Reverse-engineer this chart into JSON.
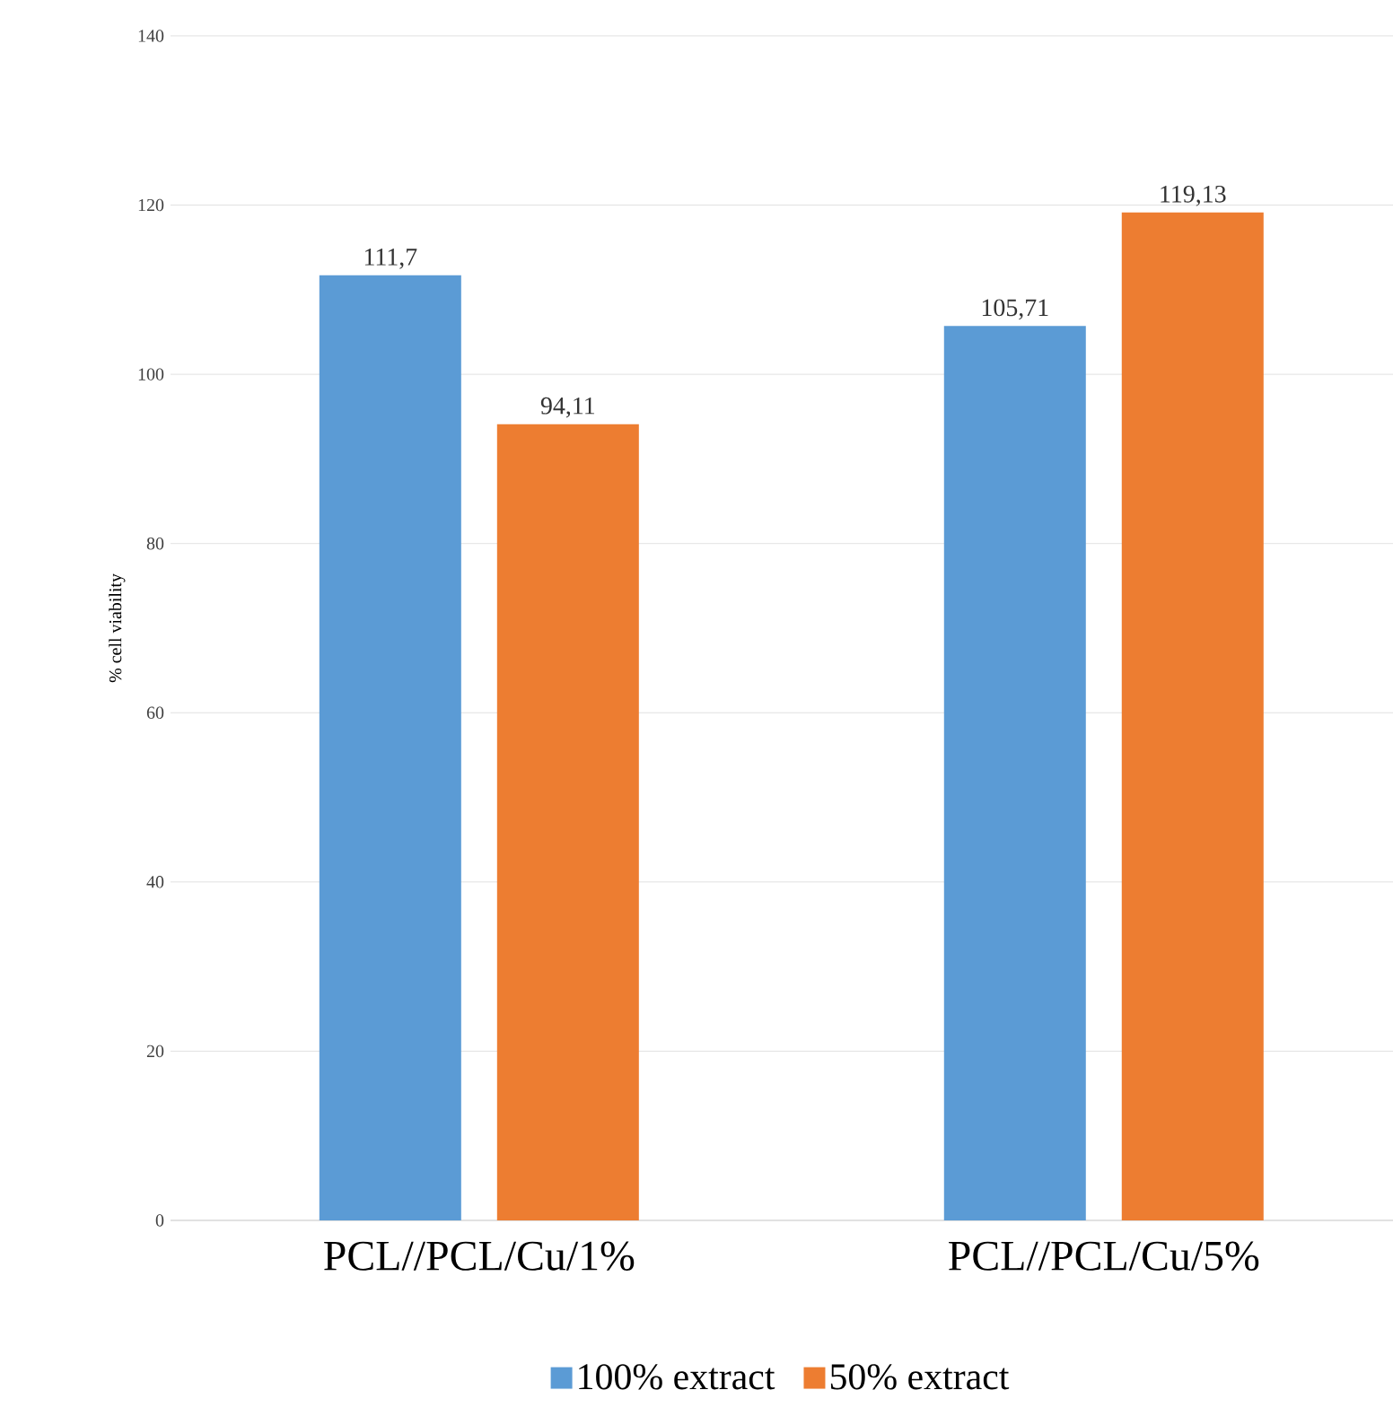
{
  "chart_data": {
    "type": "bar",
    "ylabel": "% cell viability",
    "categories": [
      "PCL//PCL/Cu/1%",
      "PCL//PCL/Cu/5%"
    ],
    "series": [
      {
        "name": "100% extract",
        "color": "#5b9bd5",
        "values": [
          111.7,
          105.71
        ],
        "value_labels": [
          "111,7",
          "105,71"
        ]
      },
      {
        "name": "50% extract",
        "color": "#ed7d31",
        "values": [
          94.11,
          119.13
        ],
        "value_labels": [
          "94,11",
          "119,13"
        ]
      }
    ],
    "ylim": [
      0,
      140
    ],
    "yticks": [
      0,
      20,
      40,
      60,
      80,
      100,
      120,
      140
    ],
    "grid": "y",
    "legend": "bottom"
  }
}
